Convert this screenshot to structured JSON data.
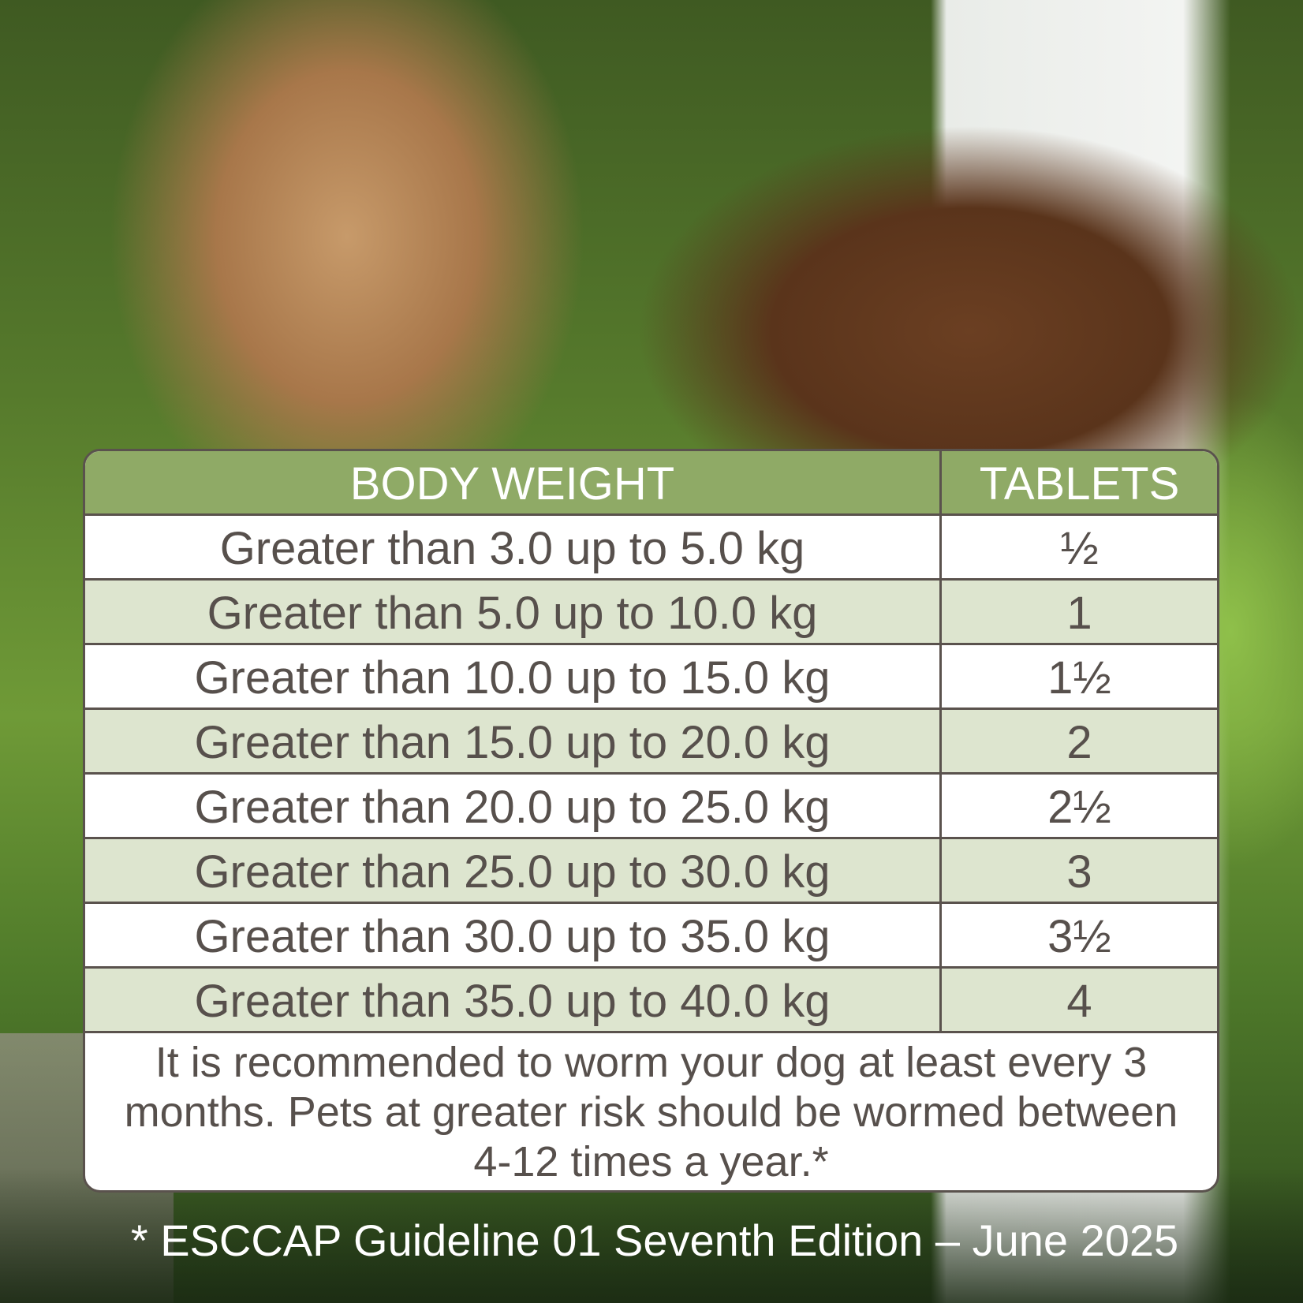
{
  "table": {
    "headers": {
      "weight": "BODY WEIGHT",
      "tablets": "TABLETS"
    },
    "rows": [
      {
        "weight": "Greater than 3.0 up to 5.0 kg",
        "tablets": "½"
      },
      {
        "weight": "Greater than 5.0 up to 10.0 kg",
        "tablets": "1"
      },
      {
        "weight": "Greater than 10.0 up to 15.0 kg",
        "tablets": "1½"
      },
      {
        "weight": "Greater than 15.0 up to 20.0 kg",
        "tablets": "2"
      },
      {
        "weight": "Greater than 20.0 up to 25.0 kg",
        "tablets": "2½"
      },
      {
        "weight": "Greater than 25.0 up to 30.0 kg",
        "tablets": "3"
      },
      {
        "weight": "Greater than 30.0 up to 35.0 kg",
        "tablets": "3½"
      },
      {
        "weight": "Greater than 35.0 up to 40.0 kg",
        "tablets": "4"
      }
    ],
    "note": "It is recommended to worm your dog at least every 3 months. Pets at greater risk should be wormed between 4-12 times a year.*"
  },
  "footer": "* ESCCAP Guideline 01 Seventh Edition – June 2025",
  "colors": {
    "header": "#8faa66",
    "alt_row": "#dde5cf",
    "text": "#57504c",
    "border": "#5a524d"
  }
}
